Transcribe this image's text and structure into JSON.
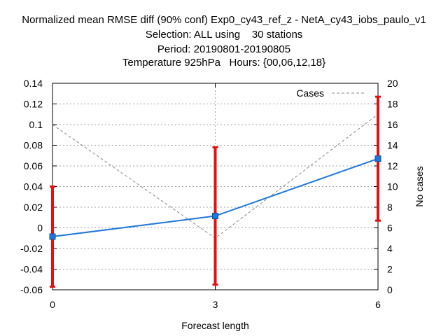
{
  "chart_data": {
    "type": "line",
    "title": [
      "Normalized mean RMSE diff (90% conf) Exp0_cy43_ref_z - NetA_cy43_iobs_paulo_v1",
      "Selection: ALL using    30 stations",
      "Period: 20190801-20190805",
      "Temperature 925hPa   Hours: {00,06,12,18}"
    ],
    "xlabel": "Forecast length",
    "ylabel_right": "No cases",
    "x": [
      0,
      3,
      6
    ],
    "xlim": [
      0,
      6
    ],
    "ylim": [
      -0.06,
      0.14
    ],
    "ylim_right": [
      0,
      20
    ],
    "yticks": [
      "-0.06",
      "-0.04",
      "-0.02",
      "0",
      "0.02",
      "0.04",
      "0.06",
      "0.08",
      "0.1",
      "0.12",
      "0.14"
    ],
    "yticks_right": [
      "0",
      "2",
      "4",
      "6",
      "8",
      "10",
      "12",
      "14",
      "16",
      "18",
      "20"
    ],
    "xticks": [
      "0",
      "3",
      "6"
    ],
    "grid": true,
    "legend_position": "top-right",
    "series": [
      {
        "values": [
          -0.0085,
          0.0115,
          0.067
        ],
        "err_low": [
          -0.057,
          -0.055,
          0.007
        ],
        "err_high": [
          0.04,
          0.078,
          0.127
        ],
        "color": "#1f78d8",
        "error_color": "#e41010"
      },
      {
        "name": "Cases",
        "axis": "right",
        "values": [
          16,
          5,
          17
        ],
        "color": "#888888",
        "style": "dashed"
      }
    ]
  }
}
